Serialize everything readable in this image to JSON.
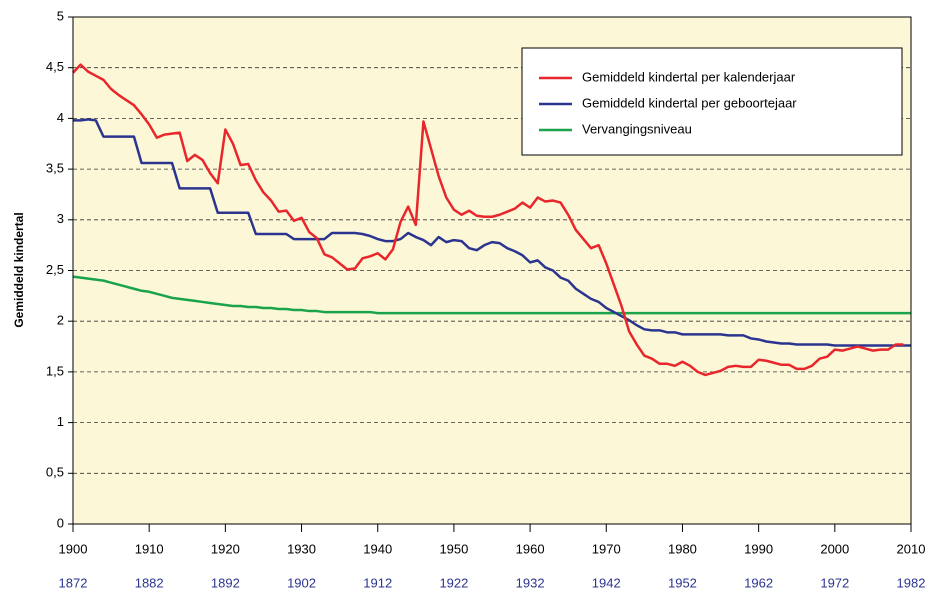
{
  "chart_data": {
    "type": "line",
    "ylabel": "Gemiddeld kindertal",
    "x": [
      1900,
      1901,
      1902,
      1903,
      1904,
      1905,
      1906,
      1907,
      1908,
      1909,
      1910,
      1911,
      1912,
      1913,
      1914,
      1915,
      1916,
      1917,
      1918,
      1919,
      1920,
      1921,
      1922,
      1923,
      1924,
      1925,
      1926,
      1927,
      1928,
      1929,
      1930,
      1931,
      1932,
      1933,
      1934,
      1935,
      1936,
      1937,
      1938,
      1939,
      1940,
      1941,
      1942,
      1943,
      1944,
      1945,
      1946,
      1947,
      1948,
      1949,
      1950,
      1951,
      1952,
      1953,
      1954,
      1955,
      1956,
      1957,
      1958,
      1959,
      1960,
      1961,
      1962,
      1963,
      1964,
      1965,
      1966,
      1967,
      1968,
      1969,
      1970,
      1971,
      1972,
      1973,
      1974,
      1975,
      1976,
      1977,
      1978,
      1979,
      1980,
      1981,
      1982,
      1983,
      1984,
      1985,
      1986,
      1987,
      1988,
      1989,
      1990,
      1991,
      1992,
      1993,
      1994,
      1995,
      1996,
      1997,
      1998,
      1999,
      2000,
      2001,
      2002,
      2003,
      2004,
      2005,
      2006,
      2007,
      2008,
      2009,
      2010
    ],
    "series": [
      {
        "name": "Gemiddeld kindertal per kalenderjaar",
        "color": "#e8262b",
        "values": [
          4.45,
          4.53,
          4.46,
          4.42,
          4.38,
          4.29,
          4.23,
          4.18,
          4.13,
          4.04,
          3.94,
          3.81,
          3.84,
          3.85,
          3.86,
          3.58,
          3.64,
          3.59,
          3.46,
          3.36,
          3.89,
          3.75,
          3.54,
          3.55,
          3.39,
          3.27,
          3.19,
          3.08,
          3.09,
          2.99,
          3.02,
          2.88,
          2.82,
          2.66,
          2.63,
          2.57,
          2.51,
          2.52,
          2.62,
          2.64,
          2.67,
          2.61,
          2.71,
          2.98,
          3.13,
          2.95,
          3.97,
          3.7,
          3.43,
          3.22,
          3.1,
          3.05,
          3.09,
          3.04,
          3.03,
          3.03,
          3.05,
          3.08,
          3.11,
          3.17,
          3.12,
          3.22,
          3.18,
          3.19,
          3.17,
          3.05,
          2.9,
          2.81,
          2.72,
          2.75,
          2.57,
          2.36,
          2.15,
          1.9,
          1.77,
          1.66,
          1.63,
          1.58,
          1.58,
          1.56,
          1.6,
          1.56,
          1.5,
          1.47,
          1.49,
          1.51,
          1.55,
          1.56,
          1.55,
          1.55,
          1.62,
          1.61,
          1.59,
          1.57,
          1.57,
          1.53,
          1.53,
          1.56,
          1.63,
          1.65,
          1.72,
          1.71,
          1.73,
          1.75,
          1.73,
          1.71,
          1.72,
          1.72,
          1.77,
          1.77,
          null
        ]
      },
      {
        "name": "Gemiddeld kindertal per geboortejaar",
        "color": "#2b3590",
        "values": [
          3.98,
          3.98,
          3.99,
          3.98,
          3.82,
          3.82,
          3.82,
          3.82,
          3.82,
          3.56,
          3.56,
          3.56,
          3.56,
          3.56,
          3.31,
          3.31,
          3.31,
          3.31,
          3.31,
          3.07,
          3.07,
          3.07,
          3.07,
          3.07,
          2.86,
          2.86,
          2.86,
          2.86,
          2.86,
          2.81,
          2.81,
          2.81,
          2.81,
          2.81,
          2.87,
          2.87,
          2.87,
          2.87,
          2.86,
          2.84,
          2.81,
          2.79,
          2.79,
          2.81,
          2.87,
          2.83,
          2.8,
          2.75,
          2.83,
          2.78,
          2.8,
          2.79,
          2.72,
          2.7,
          2.75,
          2.78,
          2.77,
          2.72,
          2.69,
          2.65,
          2.58,
          2.6,
          2.53,
          2.5,
          2.43,
          2.4,
          2.32,
          2.27,
          2.22,
          2.19,
          2.13,
          2.09,
          2.05,
          2.01,
          1.96,
          1.92,
          1.91,
          1.91,
          1.89,
          1.89,
          1.87,
          1.87,
          1.87,
          1.87,
          1.87,
          1.87,
          1.86,
          1.86,
          1.86,
          1.83,
          1.82,
          1.8,
          1.79,
          1.78,
          1.78,
          1.77,
          1.77,
          1.77,
          1.77,
          1.77,
          1.76,
          1.76,
          1.76,
          1.76,
          1.76,
          1.76,
          1.76,
          1.76,
          1.76,
          1.76,
          1.76
        ]
      },
      {
        "name": "Vervangingsniveau",
        "color": "#1aa34a",
        "values": [
          2.44,
          2.43,
          2.42,
          2.41,
          2.4,
          2.38,
          2.36,
          2.34,
          2.32,
          2.3,
          2.29,
          2.27,
          2.25,
          2.23,
          2.22,
          2.21,
          2.2,
          2.19,
          2.18,
          2.17,
          2.16,
          2.15,
          2.15,
          2.14,
          2.14,
          2.13,
          2.13,
          2.12,
          2.12,
          2.11,
          2.11,
          2.1,
          2.1,
          2.09,
          2.09,
          2.09,
          2.09,
          2.09,
          2.09,
          2.09,
          2.08,
          2.08,
          2.08,
          2.08,
          2.08,
          2.08,
          2.08,
          2.08,
          2.08,
          2.08,
          2.08,
          2.08,
          2.08,
          2.08,
          2.08,
          2.08,
          2.08,
          2.08,
          2.08,
          2.08,
          2.08,
          2.08,
          2.08,
          2.08,
          2.08,
          2.08,
          2.08,
          2.08,
          2.08,
          2.08,
          2.08,
          2.08,
          2.08,
          2.08,
          2.08,
          2.08,
          2.08,
          2.08,
          2.08,
          2.08,
          2.08,
          2.08,
          2.08,
          2.08,
          2.08,
          2.08,
          2.08,
          2.08,
          2.08,
          2.08,
          2.08,
          2.08,
          2.08,
          2.08,
          2.08,
          2.08,
          2.08,
          2.08,
          2.08,
          2.08,
          2.08,
          2.08,
          2.08,
          2.08,
          2.08,
          2.08,
          2.08,
          2.08,
          2.08,
          2.08,
          2.08
        ]
      }
    ],
    "xlim": [
      1900,
      2010
    ],
    "xticks": [
      1900,
      1910,
      1920,
      1930,
      1940,
      1950,
      1960,
      1970,
      1980,
      1990,
      2000,
      2010
    ],
    "x2lim": [
      1872,
      1982
    ],
    "x2ticks": [
      1872,
      1882,
      1892,
      1902,
      1912,
      1922,
      1932,
      1942,
      1952,
      1962,
      1972,
      1982
    ],
    "x2color": "#2b3590",
    "ylim": [
      0,
      5
    ],
    "yticks": [
      0,
      {
        "value": 0.5,
        "label": "0,5"
      },
      1,
      {
        "value": 1.5,
        "label": "1,5"
      },
      2,
      {
        "value": 2.5,
        "label": "2,5"
      },
      3,
      {
        "value": 3.5,
        "label": "3,5"
      },
      4,
      {
        "value": 4.5,
        "label": "4,5"
      },
      5
    ],
    "grid": true,
    "legend": "upper right",
    "background": "#fcf8d7"
  }
}
